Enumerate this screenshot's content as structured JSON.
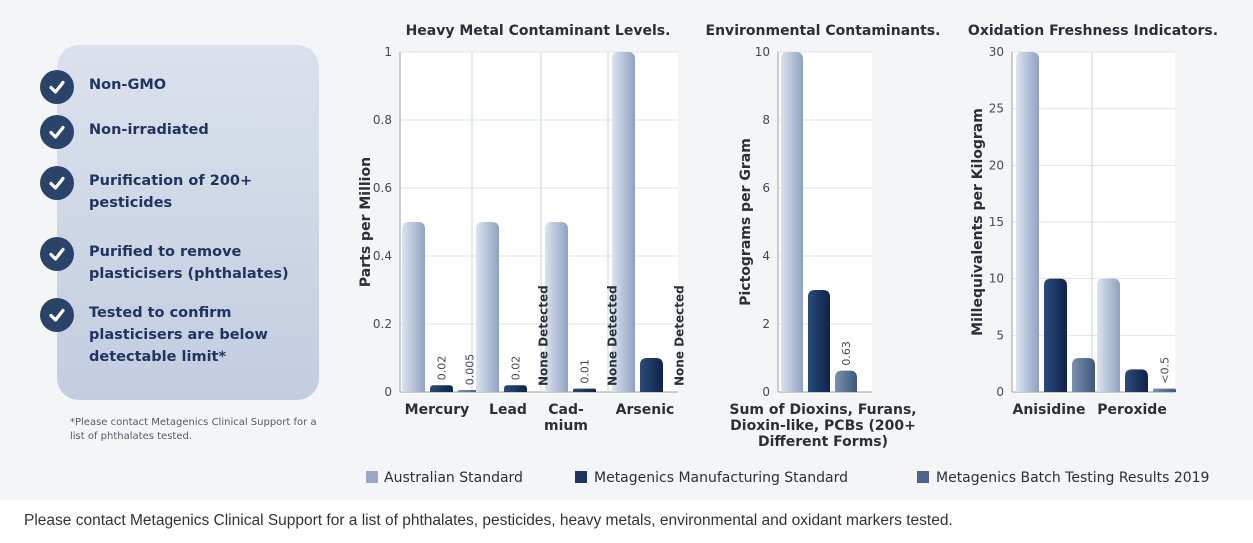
{
  "checklist": {
    "items": [
      {
        "label_lines": [
          "Non-GMO"
        ]
      },
      {
        "label_lines": [
          "Non-irradiated"
        ]
      },
      {
        "label_lines": [
          "Purification of 200+",
          "pesticides"
        ]
      },
      {
        "label_lines": [
          "Purified to remove",
          "plasticisers (phthalates)"
        ]
      },
      {
        "label_lines": [
          "Tested to confirm",
          "plasticisers are below",
          "detectable limit*"
        ]
      }
    ],
    "footnote": "*Please contact Metagenics Clinical Support for a list of phthalates tested."
  },
  "bottom_note": "Please contact Metagenics Clinical Support for a list of phthalates, pesticides, heavy metals, environmental and oxidant markers tested.",
  "colors": {
    "australian": "#97a9c7",
    "manufacturing": "#1c3560",
    "batch": "#4d6588"
  },
  "legend": [
    {
      "label": "Australian Standard",
      "color_key": "australian"
    },
    {
      "label": "Metagenics Manufacturing Standard",
      "color_key": "manufacturing"
    },
    {
      "label": "Metagenics Batch Testing Results 2019",
      "color_key": "batch"
    }
  ],
  "chart_data": [
    {
      "type": "bar",
      "title": "Heavy Metal Contaminant Levels.",
      "ylabel": "Parts per Million",
      "ylim": [
        0,
        1
      ],
      "yticks": [
        "0",
        "0.2",
        "0.4",
        "0.6",
        "0.8",
        "1"
      ],
      "categories": [
        "Mercury",
        "Lead",
        "Cad-\nmium",
        "Arsenic"
      ],
      "series": [
        {
          "name": "Australian Standard",
          "values": [
            0.5,
            0.5,
            0.5,
            1.0
          ]
        },
        {
          "name": "Metagenics Manufacturing Standard",
          "values": [
            0.02,
            0.02,
            0.01,
            0.1
          ]
        },
        {
          "name": "Metagenics Batch Testing Results 2019",
          "values": [
            0.005,
            null,
            null,
            null
          ]
        }
      ],
      "annotations": [
        {
          "category": 0,
          "series": 1,
          "text": "0.02"
        },
        {
          "category": 0,
          "series": 2,
          "text": "0.005"
        },
        {
          "category": 1,
          "series": 1,
          "text": "0.02"
        },
        {
          "category": 1,
          "series": 2,
          "text": "None Detected"
        },
        {
          "category": 2,
          "series": 1,
          "text": "0.01"
        },
        {
          "category": 2,
          "series": 2,
          "text": "None Detected"
        },
        {
          "category": 3,
          "series": 2,
          "text": "None Detected"
        }
      ]
    },
    {
      "type": "bar",
      "title": "Environmental Contaminants.",
      "ylabel": "Pictograms per Gram",
      "ylim": [
        0,
        10
      ],
      "yticks": [
        "0",
        "2",
        "4",
        "6",
        "8",
        "10"
      ],
      "categories": [
        "Sum of Dioxins, Furans,\nDioxin-like, PCBs (200+\nDifferent Forms)"
      ],
      "series": [
        {
          "name": "Australian Standard",
          "values": [
            10
          ]
        },
        {
          "name": "Metagenics Manufacturing Standard",
          "values": [
            3
          ]
        },
        {
          "name": "Metagenics Batch Testing Results 2019",
          "values": [
            0.63
          ]
        }
      ],
      "annotations": [
        {
          "category": 0,
          "series": 2,
          "text": "0.63"
        }
      ]
    },
    {
      "type": "bar",
      "title": "Oxidation Freshness Indicators.",
      "ylabel": "Millequivalents per Kilogram",
      "ylim": [
        0,
        30
      ],
      "yticks": [
        "0",
        "5",
        "10",
        "15",
        "20",
        "25",
        "30"
      ],
      "categories": [
        "Anisidine",
        "Peroxide"
      ],
      "series": [
        {
          "name": "Australian Standard",
          "values": [
            30,
            10
          ]
        },
        {
          "name": "Metagenics Manufacturing Standard",
          "values": [
            10,
            2
          ]
        },
        {
          "name": "Metagenics Batch Testing Results 2019",
          "values": [
            3,
            0.3
          ]
        }
      ],
      "annotations": [
        {
          "category": 1,
          "series": 2,
          "text": "<0.5"
        }
      ]
    }
  ]
}
